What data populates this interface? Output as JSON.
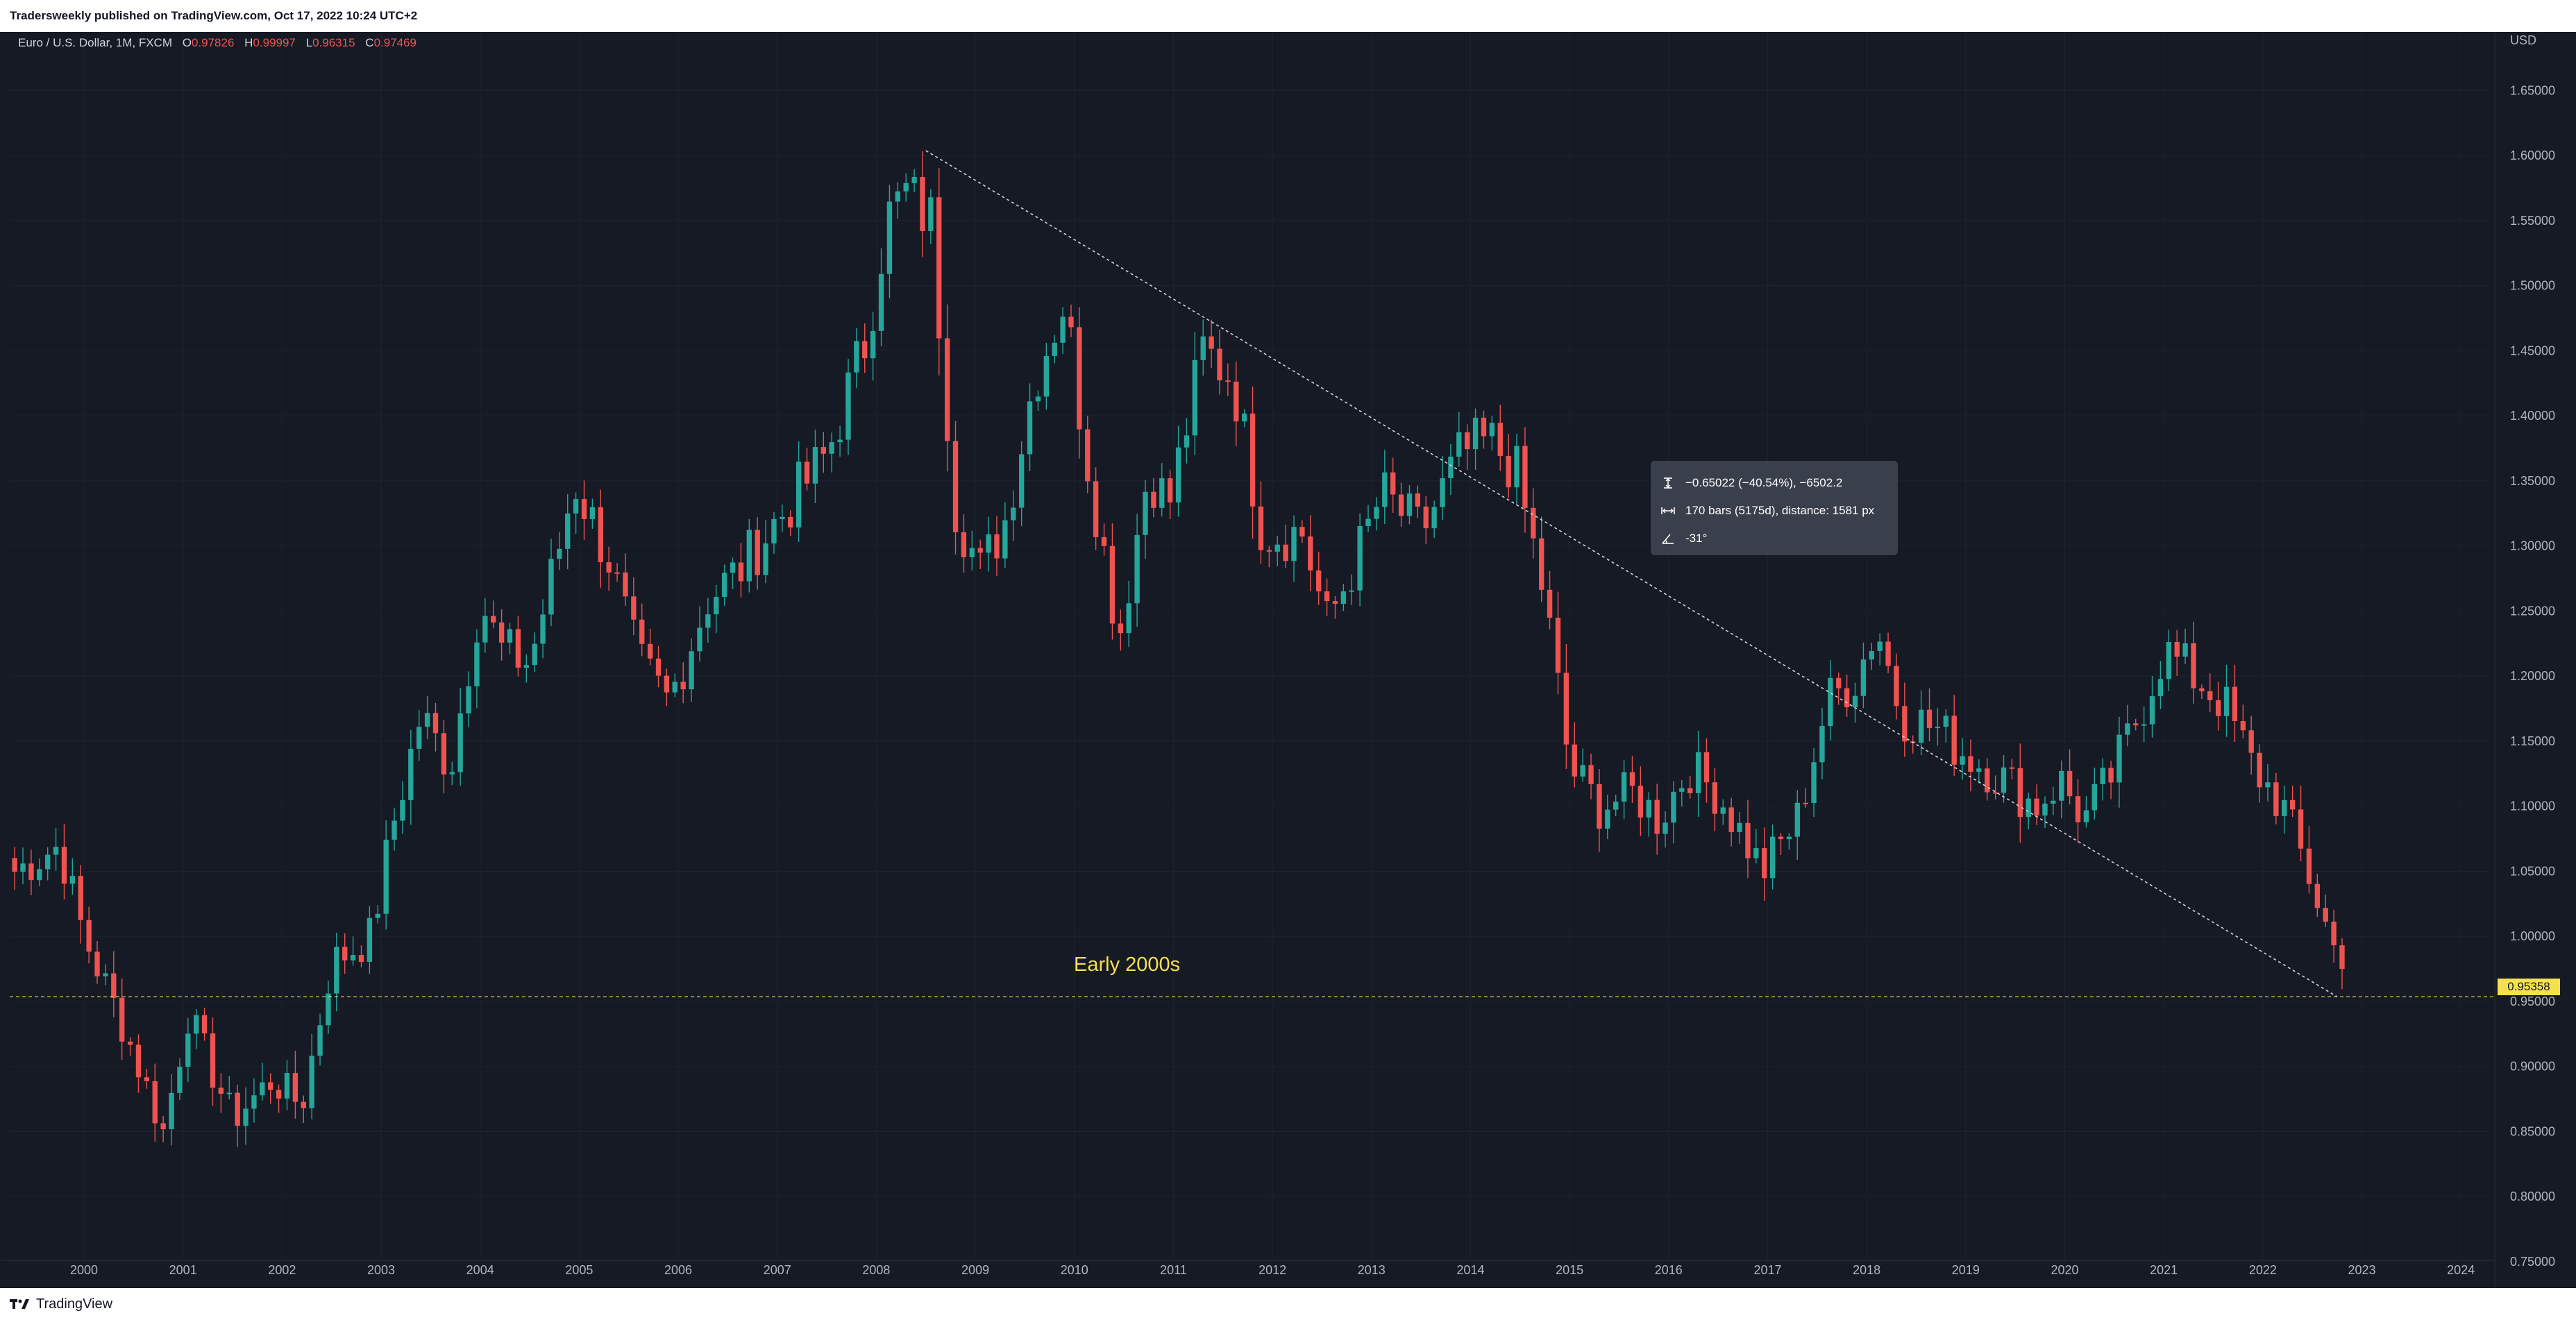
{
  "header": {
    "published": "Tradersweekly published on TradingView.com, Oct 17, 2022 10:24 UTC+2"
  },
  "footer": {
    "brand": "TradingView"
  },
  "legend": {
    "symbol": "Euro / U.S. Dollar, 1M, FXCM",
    "o_label": "O",
    "o_value": "0.97826",
    "h_label": "H",
    "h_value": "0.99997",
    "l_label": "L",
    "l_value": "0.96315",
    "c_label": "C",
    "c_value": "0.97469"
  },
  "tooltip": {
    "price_change": "−0.65022 (−40.54%), −6502.2",
    "bars_range": "170 bars (5175d), distance: 1581 px",
    "angle": "-31°"
  },
  "annotation": {
    "text": "Early 2000s"
  },
  "colors": {
    "background": "#161a25",
    "up": "#26a69a",
    "down": "#ef5350",
    "annotation": "#f5e04f",
    "grid": "#1f2330",
    "axis_text": "#b2b5be"
  },
  "chart_data": {
    "type": "candlestick",
    "symbol": "EURUSD",
    "timeframe": "1M",
    "currency": "USD",
    "x_range": [
      1999.25,
      2024.3
    ],
    "ylim": [
      0.735,
      1.695
    ],
    "x_ticks": [
      "2000",
      "2001",
      "2002",
      "2003",
      "2004",
      "2005",
      "2006",
      "2007",
      "2008",
      "2009",
      "2010",
      "2011",
      "2012",
      "2013",
      "2014",
      "2015",
      "2016",
      "2017",
      "2018",
      "2019",
      "2020",
      "2021",
      "2022",
      "2023",
      "2024"
    ],
    "y_ticks": [
      "0.75000",
      "0.80000",
      "0.85000",
      "0.90000",
      "0.95000",
      "1.00000",
      "1.05000",
      "1.10000",
      "1.15000",
      "1.20000",
      "1.25000",
      "1.30000",
      "1.35000",
      "1.40000",
      "1.45000",
      "1.50000",
      "1.55000",
      "1.60000",
      "1.65000"
    ],
    "y_unit_label": "USD",
    "horizontal_line": {
      "price": 0.95358,
      "label": "0.95358"
    },
    "trendline": {
      "start": {
        "t": 2008.5,
        "price": 1.6038
      },
      "end": {
        "t": 2022.75,
        "price": 0.95358
      }
    },
    "anchors": [
      [
        1999.3,
        1.05
      ],
      [
        1999.75,
        1.07
      ],
      [
        2000.0,
        1.0
      ],
      [
        2000.4,
        0.93
      ],
      [
        2000.8,
        0.85
      ],
      [
        2001.05,
        0.94
      ],
      [
        2001.5,
        0.86
      ],
      [
        2001.9,
        0.89
      ],
      [
        2002.2,
        0.87
      ],
      [
        2002.5,
        0.98
      ],
      [
        2002.9,
        1.0
      ],
      [
        2003.1,
        1.08
      ],
      [
        2003.4,
        1.17
      ],
      [
        2003.7,
        1.13
      ],
      [
        2004.0,
        1.26
      ],
      [
        2004.2,
        1.22
      ],
      [
        2004.5,
        1.21
      ],
      [
        2004.8,
        1.3
      ],
      [
        2004.95,
        1.35
      ],
      [
        2005.3,
        1.29
      ],
      [
        2005.6,
        1.21
      ],
      [
        2005.9,
        1.18
      ],
      [
        2006.3,
        1.26
      ],
      [
        2006.6,
        1.28
      ],
      [
        2006.9,
        1.31
      ],
      [
        2007.1,
        1.33
      ],
      [
        2007.5,
        1.37
      ],
      [
        2007.9,
        1.46
      ],
      [
        2008.1,
        1.55
      ],
      [
        2008.3,
        1.57
      ],
      [
        2008.55,
        1.55
      ],
      [
        2008.8,
        1.33
      ],
      [
        2009.05,
        1.28
      ],
      [
        2009.3,
        1.32
      ],
      [
        2009.6,
        1.43
      ],
      [
        2009.9,
        1.49
      ],
      [
        2010.1,
        1.38
      ],
      [
        2010.45,
        1.23
      ],
      [
        2010.75,
        1.36
      ],
      [
        2010.95,
        1.33
      ],
      [
        2011.3,
        1.45
      ],
      [
        2011.6,
        1.43
      ],
      [
        2011.9,
        1.31
      ],
      [
        2012.3,
        1.31
      ],
      [
        2012.55,
        1.24
      ],
      [
        2012.9,
        1.3
      ],
      [
        2013.1,
        1.34
      ],
      [
        2013.5,
        1.31
      ],
      [
        2013.9,
        1.37
      ],
      [
        2014.2,
        1.38
      ],
      [
        2014.45,
        1.36
      ],
      [
        2014.75,
        1.26
      ],
      [
        2015.0,
        1.13
      ],
      [
        2015.3,
        1.1
      ],
      [
        2015.65,
        1.11
      ],
      [
        2015.9,
        1.09
      ],
      [
        2016.2,
        1.13
      ],
      [
        2016.5,
        1.11
      ],
      [
        2016.95,
        1.05
      ],
      [
        2017.3,
        1.09
      ],
      [
        2017.6,
        1.18
      ],
      [
        2017.9,
        1.2
      ],
      [
        2018.1,
        1.24
      ],
      [
        2018.35,
        1.17
      ],
      [
        2018.7,
        1.16
      ],
      [
        2019.0,
        1.14
      ],
      [
        2019.4,
        1.12
      ],
      [
        2019.7,
        1.1
      ],
      [
        2019.95,
        1.12
      ],
      [
        2020.2,
        1.09
      ],
      [
        2020.45,
        1.12
      ],
      [
        2020.8,
        1.18
      ],
      [
        2021.0,
        1.22
      ],
      [
        2021.3,
        1.2
      ],
      [
        2021.6,
        1.18
      ],
      [
        2021.9,
        1.13
      ],
      [
        2022.2,
        1.1
      ],
      [
        2022.45,
        1.05
      ],
      [
        2022.72,
        0.99
      ],
      [
        2022.8,
        0.975
      ]
    ]
  }
}
